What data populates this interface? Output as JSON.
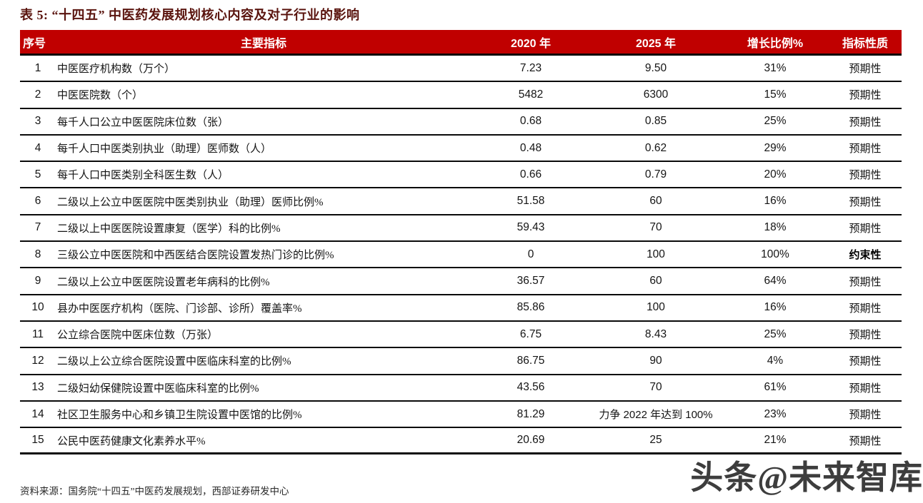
{
  "title": "表 5: “十四五” 中医药发展规划核心内容及对子行业的影响",
  "source": "资料来源：国务院“十四五”中医药发展规划，西部证券研发中心",
  "watermark": "头条@未来智库",
  "colors": {
    "header_bg": "#c00000",
    "header_text": "#ffffff",
    "title_text": "#5a140e",
    "row_line": "#0a0a0a"
  },
  "table": {
    "headers": [
      "序号",
      "主要指标",
      "2020 年",
      "2025 年",
      "增长比例%",
      "指标性质"
    ],
    "rows": [
      {
        "no": "1",
        "indicator": "中医医疗机构数（万个）",
        "y2020": "7.23",
        "y2025": "9.50",
        "growth": "31%",
        "nature": "预期性",
        "nature_bold": false
      },
      {
        "no": "2",
        "indicator": "中医医院数（个）",
        "y2020": "5482",
        "y2025": "6300",
        "growth": "15%",
        "nature": "预期性",
        "nature_bold": false
      },
      {
        "no": "3",
        "indicator": "每千人口公立中医医院床位数（张）",
        "y2020": "0.68",
        "y2025": "0.85",
        "growth": "25%",
        "nature": "预期性",
        "nature_bold": false
      },
      {
        "no": "4",
        "indicator": "每千人口中医类别执业（助理）医师数（人）",
        "y2020": "0.48",
        "y2025": "0.62",
        "growth": "29%",
        "nature": "预期性",
        "nature_bold": false
      },
      {
        "no": "5",
        "indicator": "每千人口中医类别全科医生数（人）",
        "y2020": "0.66",
        "y2025": "0.79",
        "growth": "20%",
        "nature": "预期性",
        "nature_bold": false
      },
      {
        "no": "6",
        "indicator": "二级以上公立中医医院中医类别执业（助理）医师比例%",
        "y2020": "51.58",
        "y2025": "60",
        "growth": "16%",
        "nature": "预期性",
        "nature_bold": false
      },
      {
        "no": "7",
        "indicator": "二级以上中医医院设置康复（医学）科的比例%",
        "y2020": "59.43",
        "y2025": "70",
        "growth": "18%",
        "nature": "预期性",
        "nature_bold": false
      },
      {
        "no": "8",
        "indicator": "三级公立中医医院和中西医结合医院设置发热门诊的比例%",
        "y2020": "0",
        "y2025": "100",
        "growth": "100%",
        "nature": "约束性",
        "nature_bold": true
      },
      {
        "no": "9",
        "indicator": "二级以上公立中医医院设置老年病科的比例%",
        "y2020": "36.57",
        "y2025": "60",
        "growth": "64%",
        "nature": "预期性",
        "nature_bold": false
      },
      {
        "no": "10",
        "indicator": "县办中医医疗机构（医院、门诊部、诊所）覆盖率%",
        "y2020": "85.86",
        "y2025": "100",
        "growth": "16%",
        "nature": "预期性",
        "nature_bold": false
      },
      {
        "no": "11",
        "indicator": "公立综合医院中医床位数（万张）",
        "y2020": "6.75",
        "y2025": "8.43",
        "growth": "25%",
        "nature": "预期性",
        "nature_bold": false
      },
      {
        "no": "12",
        "indicator": "二级以上公立综合医院设置中医临床科室的比例%",
        "y2020": "86.75",
        "y2025": "90",
        "growth": "4%",
        "nature": "预期性",
        "nature_bold": false
      },
      {
        "no": "13",
        "indicator": "二级妇幼保健院设置中医临床科室的比例%",
        "y2020": "43.56",
        "y2025": "70",
        "growth": "61%",
        "nature": "预期性",
        "nature_bold": false
      },
      {
        "no": "14",
        "indicator": "社区卫生服务中心和乡镇卫生院设置中医馆的比例%",
        "y2020": "81.29",
        "y2025": "力争 2022 年达到 100%",
        "growth": "23%",
        "nature": "预期性",
        "nature_bold": false
      },
      {
        "no": "15",
        "indicator": "公民中医药健康文化素养水平%",
        "y2020": "20.69",
        "y2025": "25",
        "growth": "21%",
        "nature": "预期性",
        "nature_bold": false
      }
    ]
  }
}
